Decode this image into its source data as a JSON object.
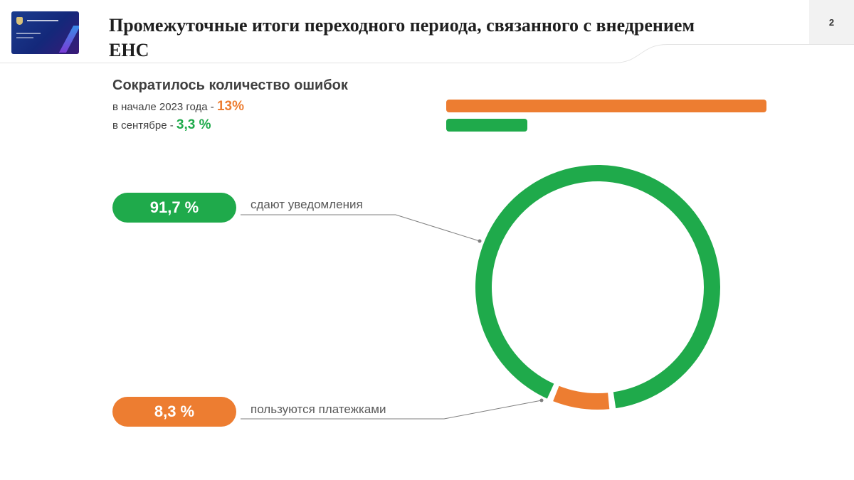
{
  "header": {
    "title": "Промежуточные итоги переходного периода, связанного с внедрением ЕНС",
    "page_number": "2"
  },
  "errors": {
    "heading": "Сократилось количество ошибок",
    "start": {
      "label": "в начале 2023 года - ",
      "value": "13%"
    },
    "september": {
      "label": "в сентябре - ",
      "value": "3,3 %"
    }
  },
  "distribution": {
    "notifications": {
      "value": "91,7 %",
      "label": "сдают уведомления"
    },
    "payment_orders": {
      "value": "8,3 %",
      "label": "пользуются платежками"
    }
  },
  "colors": {
    "green": "#1faa4b",
    "orange": "#ed7d31"
  },
  "chart_data": [
    {
      "type": "bar",
      "orientation": "horizontal",
      "categories": [
        "в начале 2023 года",
        "в сентябре"
      ],
      "values": [
        13,
        3.3
      ],
      "colors": [
        "#ed7d31",
        "#1faa4b"
      ]
    },
    {
      "type": "pie",
      "style": "donut",
      "categories": [
        "сдают уведомления",
        "пользуются платежками"
      ],
      "values": [
        91.7,
        8.3
      ],
      "colors": [
        "#1faa4b",
        "#ed7d31"
      ]
    }
  ]
}
